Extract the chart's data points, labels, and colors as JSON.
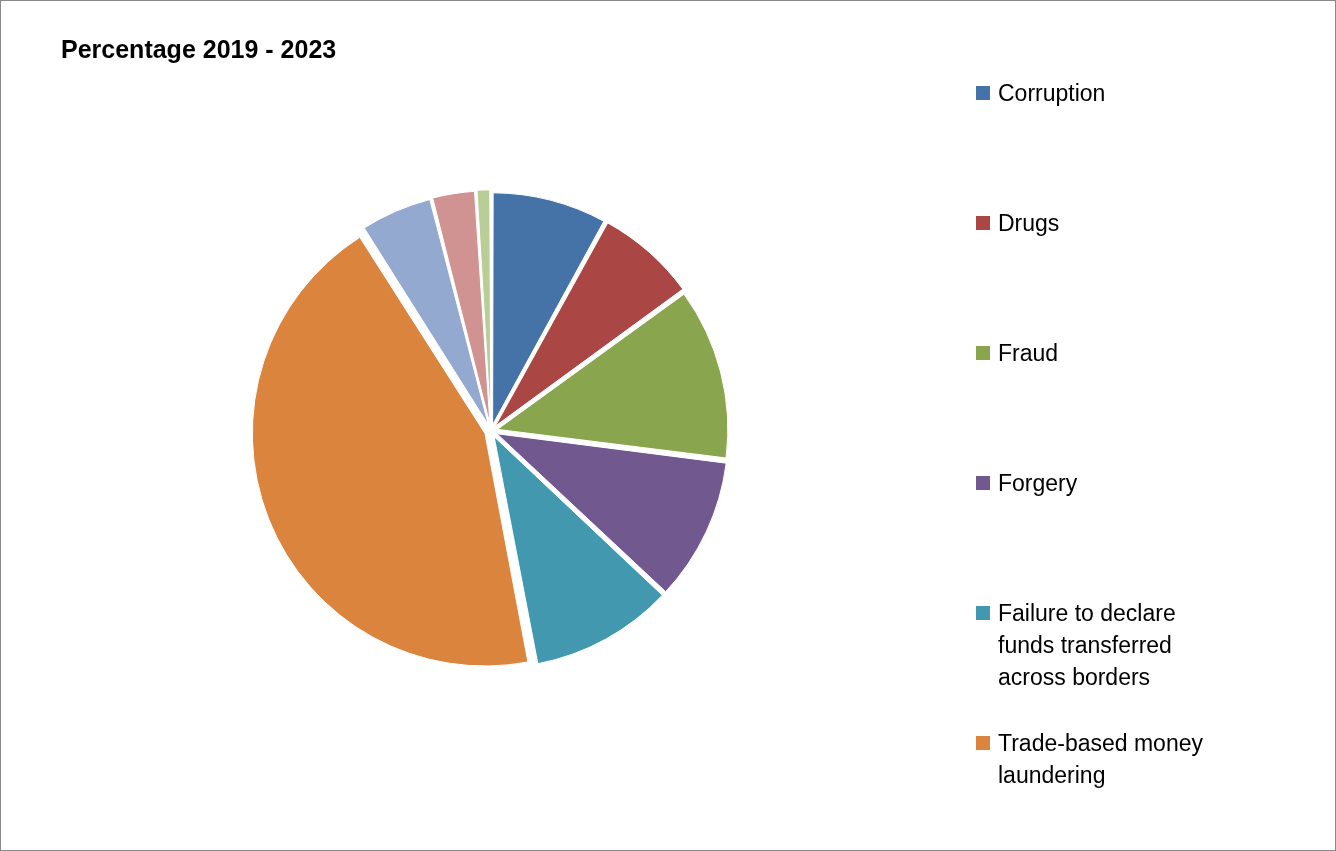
{
  "chart_data": {
    "type": "pie",
    "title": "Percentage 2019 - 2023",
    "categories": [
      "Corruption",
      "Drugs",
      "Fraud",
      "Forgery",
      "Failure to declare funds transferred across borders",
      "Trade-based money laundering",
      null,
      null,
      null
    ],
    "values": [
      8,
      7,
      12,
      10,
      10,
      44,
      5,
      3,
      1
    ],
    "colors": [
      "#4572a7",
      "#aa4643",
      "#89a54e",
      "#71588f",
      "#4198af",
      "#db843d",
      "#93a9cf",
      "#d19392",
      "#b9cd96"
    ],
    "legend": "right"
  }
}
